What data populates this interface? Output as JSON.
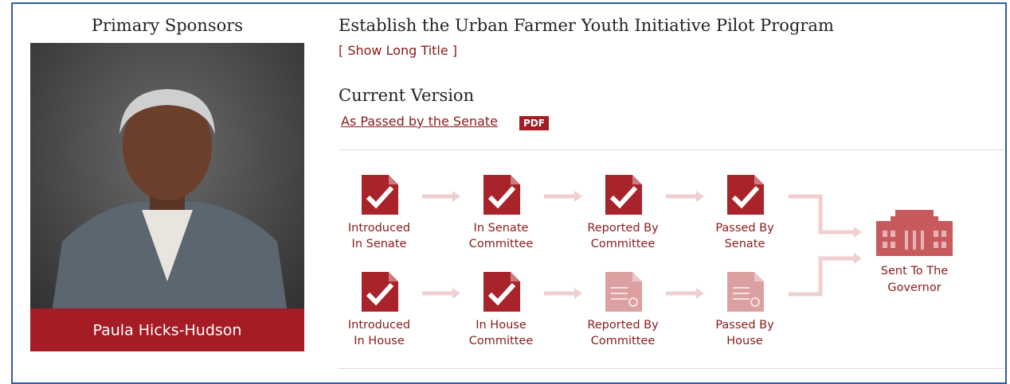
{
  "sponsors": {
    "heading": "Primary Sponsors",
    "name": "Paula Hicks-Hudson"
  },
  "bill": {
    "title": "Establish the Urban Farmer Youth Initiative Pilot Program",
    "long_title_open": "[",
    "long_title_link": "Show Long Title",
    "long_title_close": "]"
  },
  "current_version": {
    "heading": "Current Version",
    "link": "As Passed by the Senate",
    "badge": "PDF"
  },
  "status": {
    "rows": [
      {
        "stages": [
          {
            "label": [
              "Introduced",
              "In Senate"
            ],
            "completed": true
          },
          {
            "label": [
              "In Senate",
              "Committee"
            ],
            "completed": true
          },
          {
            "label": [
              "Reported By",
              "Committee"
            ],
            "completed": true
          },
          {
            "label": [
              "Passed By",
              "Senate"
            ],
            "completed": true
          }
        ]
      },
      {
        "stages": [
          {
            "label": [
              "Introduced",
              "In House"
            ],
            "completed": true
          },
          {
            "label": [
              "In House",
              "Committee"
            ],
            "completed": true
          },
          {
            "label": [
              "Reported By",
              "Committee"
            ],
            "completed": false
          },
          {
            "label": [
              "Passed By",
              "House"
            ],
            "completed": false
          }
        ]
      }
    ],
    "final": {
      "label": [
        "Sent To The",
        "Governor"
      ]
    }
  }
}
